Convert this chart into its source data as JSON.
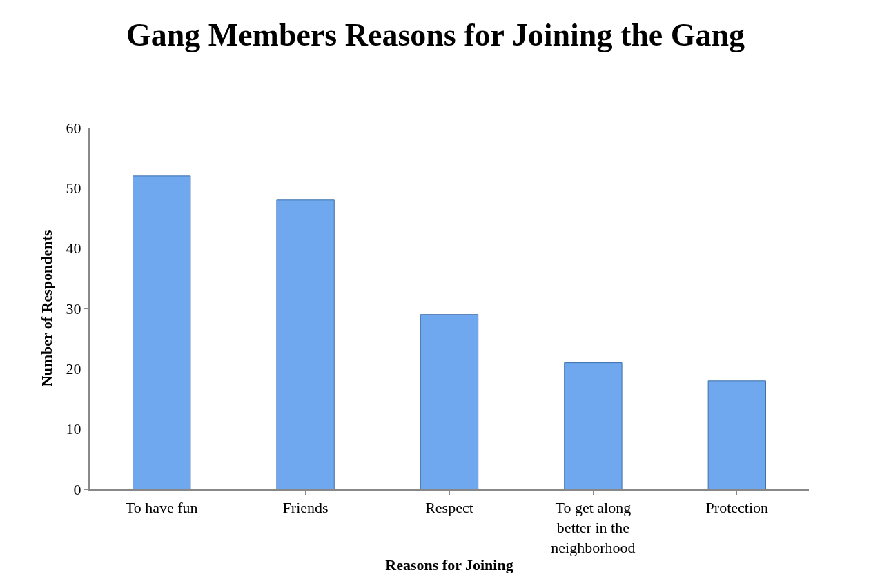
{
  "chart_data": {
    "type": "bar",
    "title": "Gang Members Reasons for Joining the Gang",
    "xlabel": "Reasons for Joining",
    "ylabel": "Number of Respondents",
    "categories": [
      "To have fun",
      "Friends",
      "Respect",
      "To get along better in the neighborhood",
      "Protection"
    ],
    "values": [
      52,
      48,
      29,
      21,
      18
    ],
    "color": "#6fa8ee",
    "ylim": [
      0,
      60
    ],
    "yticks": [
      0,
      10,
      20,
      30,
      40,
      50,
      60
    ],
    "grid": false
  }
}
